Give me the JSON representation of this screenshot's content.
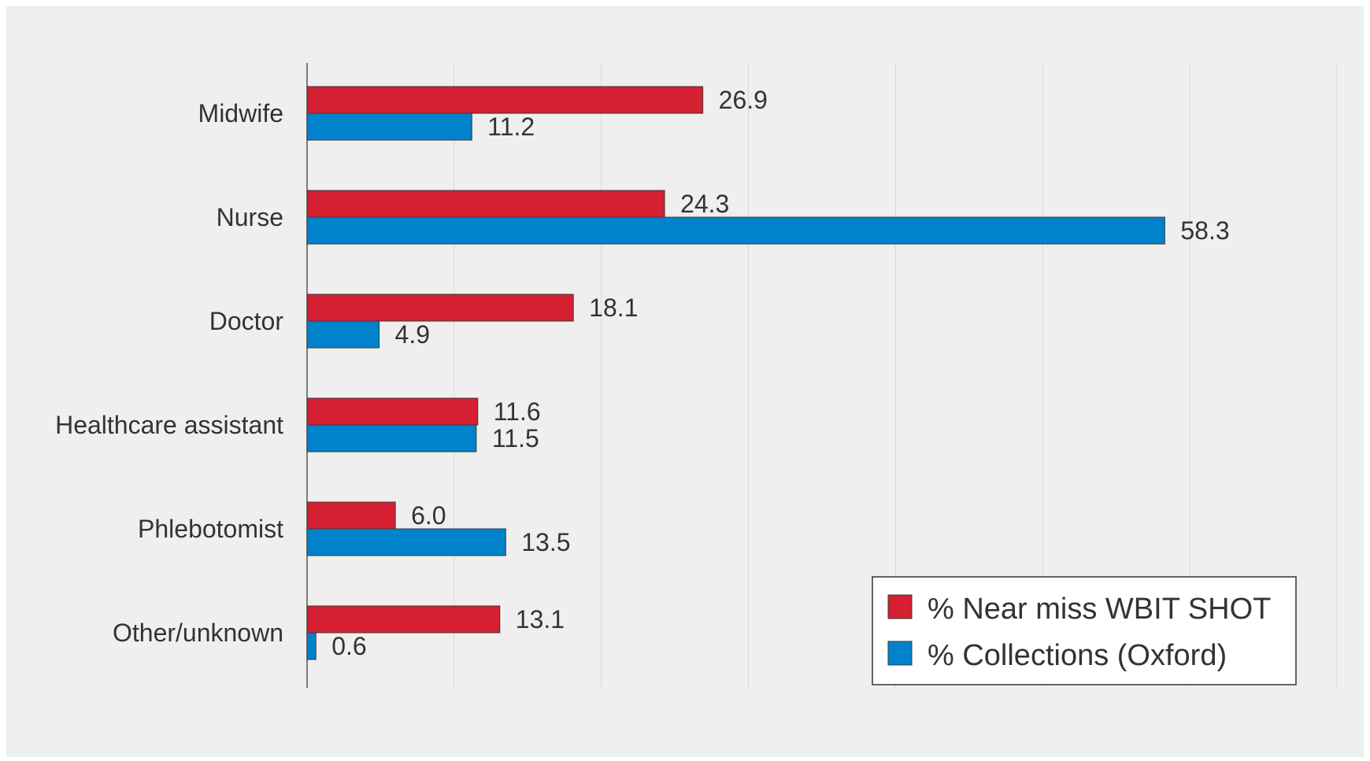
{
  "chart_data": {
    "type": "bar",
    "orientation": "horizontal",
    "categories": [
      "Midwife",
      "Nurse",
      "Doctor",
      "Healthcare assistant",
      "Phlebotomist",
      "Other/unknown"
    ],
    "series": [
      {
        "name": "% Near miss WBIT SHOT",
        "values": [
          26.9,
          24.3,
          18.1,
          11.6,
          6.0,
          13.1
        ],
        "labels": [
          "26.9",
          "24.3",
          "18.1",
          "11.6",
          "6.0",
          "13.1"
        ],
        "color": "#d42030"
      },
      {
        "name": "% Collections (Oxford)",
        "values": [
          11.2,
          58.3,
          4.9,
          11.5,
          13.5,
          0.6
        ],
        "labels": [
          "11.2",
          "58.3",
          "4.9",
          "11.5",
          "13.5",
          "0.6"
        ],
        "color": "#0083cb"
      }
    ],
    "xlim": [
      0,
      70
    ],
    "gridlines": [
      0,
      10,
      20,
      30,
      40,
      50,
      60,
      70
    ],
    "grid": true,
    "legend_position": "bottom-right",
    "title": "",
    "xlabel": "",
    "ylabel": ""
  },
  "colors": {
    "background_panel": "#efefef",
    "grid": "#d8d8d8",
    "axis": "#555555",
    "bar_outline": "#3a3a3a"
  }
}
